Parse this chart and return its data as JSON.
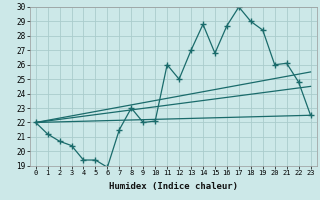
{
  "xlabel": "Humidex (Indice chaleur)",
  "ylabel": "",
  "bg_color": "#cce8e8",
  "grid_color": "#aacccc",
  "line_color": "#1a6b6b",
  "xlim": [
    -0.5,
    23.5
  ],
  "ylim": [
    19,
    30
  ],
  "xticks": [
    0,
    1,
    2,
    3,
    4,
    5,
    6,
    7,
    8,
    9,
    10,
    11,
    12,
    13,
    14,
    15,
    16,
    17,
    18,
    19,
    20,
    21,
    22,
    23
  ],
  "yticks": [
    19,
    20,
    21,
    22,
    23,
    24,
    25,
    26,
    27,
    28,
    29,
    30
  ],
  "line1_x": [
    0,
    1,
    2,
    3,
    4,
    5,
    6,
    7,
    8,
    9,
    10,
    11,
    12,
    13,
    14,
    15,
    16,
    17,
    18,
    19,
    20,
    21,
    22,
    23
  ],
  "line1_y": [
    22,
    21.2,
    20.7,
    20.4,
    19.4,
    19.4,
    18.9,
    21.5,
    23,
    22,
    22.1,
    26,
    25,
    27,
    28.8,
    26.8,
    28.7,
    30,
    29,
    28.4,
    26,
    26.1,
    24.8,
    22.5
  ],
  "line2_x": [
    0,
    23
  ],
  "line2_y": [
    22,
    22.5
  ],
  "line3_x": [
    0,
    23
  ],
  "line3_y": [
    22,
    24.5
  ],
  "line4_x": [
    0,
    23
  ],
  "line4_y": [
    22,
    25.5
  ]
}
